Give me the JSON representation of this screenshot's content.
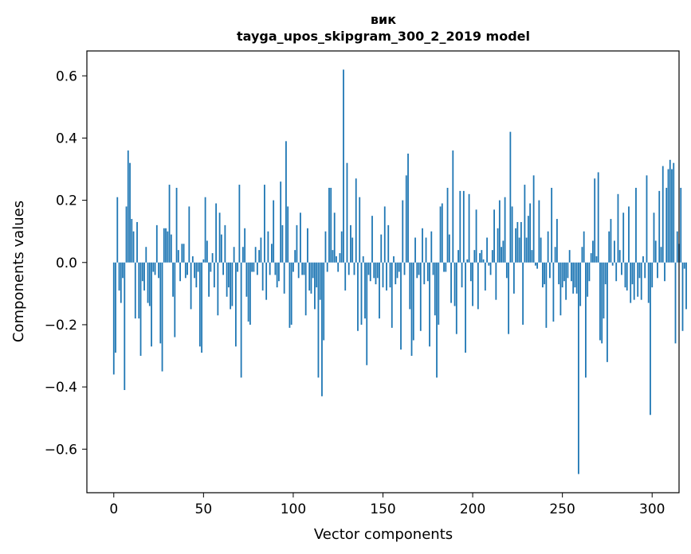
{
  "chart_data": {
    "type": "bar",
    "title_line1": "вик",
    "title_line2": "tayga_upos_skipgram_300_2_2019 model",
    "xlabel": "Vector components",
    "ylabel": "Components values",
    "xlim": [
      -15,
      315
    ],
    "ylim": [
      -0.74,
      0.68
    ],
    "xticks": [
      0,
      50,
      100,
      150,
      200,
      250,
      300
    ],
    "xtick_labels": [
      "0",
      "50",
      "100",
      "150",
      "200",
      "250",
      "300"
    ],
    "yticks": [
      -0.6,
      -0.4,
      -0.2,
      0.0,
      0.2,
      0.4,
      0.6
    ],
    "ytick_labels": [
      "−0.6",
      "−0.4",
      "−0.2",
      "0.0",
      "0.2",
      "0.4",
      "0.6"
    ],
    "bar_color": "#1f77b4",
    "values": [
      -0.36,
      -0.29,
      0.21,
      -0.09,
      -0.13,
      -0.05,
      -0.41,
      0.18,
      0.36,
      0.32,
      0.14,
      0.1,
      -0.18,
      0.13,
      -0.18,
      -0.3,
      -0.06,
      -0.09,
      0.05,
      -0.13,
      -0.14,
      -0.27,
      -0.03,
      -0.04,
      0.12,
      -0.05,
      -0.26,
      -0.35,
      0.11,
      0.11,
      0.1,
      0.25,
      0.09,
      -0.11,
      -0.24,
      0.24,
      0.04,
      -0.06,
      0.06,
      0.06,
      -0.05,
      -0.04,
      0.18,
      -0.15,
      0.02,
      -0.05,
      -0.08,
      -0.03,
      -0.27,
      -0.29,
      0.01,
      0.21,
      0.07,
      -0.11,
      -0.03,
      0.03,
      -0.08,
      0.19,
      -0.17,
      0.16,
      0.09,
      -0.04,
      0.12,
      -0.11,
      -0.08,
      -0.15,
      -0.14,
      0.05,
      -0.27,
      -0.03,
      0.25,
      -0.37,
      0.05,
      0.11,
      -0.11,
      -0.19,
      -0.2,
      -0.03,
      -0.03,
      0.05,
      -0.04,
      0.04,
      0.08,
      -0.09,
      0.25,
      -0.12,
      0.1,
      -0.04,
      0.06,
      0.2,
      -0.04,
      -0.08,
      -0.06,
      0.26,
      0.12,
      -0.1,
      0.39,
      0.18,
      -0.21,
      -0.2,
      -0.03,
      0.04,
      0.12,
      -0.05,
      0.16,
      -0.04,
      -0.04,
      -0.17,
      0.11,
      -0.09,
      -0.1,
      -0.05,
      -0.15,
      -0.08,
      -0.37,
      -0.12,
      -0.43,
      -0.25,
      0.1,
      -0.03,
      0.24,
      0.24,
      0.04,
      0.16,
      0.02,
      -0.03,
      0.03,
      0.1,
      0.62,
      -0.09,
      0.32,
      -0.04,
      0.12,
      0.08,
      -0.04,
      0.27,
      -0.22,
      0.21,
      -0.2,
      0.02,
      -0.18,
      -0.33,
      -0.04,
      -0.06,
      0.15,
      -0.05,
      -0.07,
      -0.05,
      -0.18,
      0.09,
      -0.08,
      0.18,
      -0.09,
      0.12,
      -0.08,
      -0.21,
      0.02,
      -0.07,
      -0.05,
      -0.03,
      -0.28,
      0.2,
      -0.04,
      0.28,
      0.35,
      -0.15,
      -0.3,
      -0.25,
      0.08,
      -0.05,
      -0.04,
      -0.22,
      0.11,
      -0.07,
      0.08,
      -0.06,
      -0.27,
      0.1,
      -0.04,
      -0.17,
      -0.37,
      -0.2,
      0.18,
      0.19,
      -0.03,
      -0.03,
      0.24,
      0.09,
      -0.13,
      0.36,
      -0.14,
      -0.23,
      0.04,
      0.23,
      -0.08,
      0.23,
      -0.29,
      0.01,
      0.22,
      -0.06,
      -0.14,
      0.04,
      0.17,
      -0.15,
      0.03,
      0.04,
      0.01,
      -0.09,
      0.08,
      -0.01,
      -0.04,
      0.04,
      0.17,
      -0.12,
      0.11,
      0.2,
      0.05,
      0.07,
      0.21,
      -0.05,
      -0.23,
      0.42,
      0.18,
      -0.1,
      0.11,
      0.13,
      0.08,
      0.13,
      -0.2,
      0.25,
      0.08,
      0.15,
      0.19,
      0.04,
      0.28,
      -0.01,
      -0.02,
      0.2,
      0.08,
      -0.08,
      -0.07,
      -0.21,
      0.1,
      -0.05,
      0.24,
      -0.19,
      0.05,
      0.14,
      -0.07,
      -0.17,
      -0.08,
      -0.06,
      -0.12,
      -0.05,
      0.04,
      -0.06,
      -0.1,
      -0.08,
      -0.1,
      -0.68,
      -0.14,
      0.05,
      0.1,
      -0.37,
      -0.11,
      -0.06,
      0.03,
      0.07,
      0.27,
      0.02,
      0.29,
      -0.25,
      -0.26,
      -0.18,
      -0.07,
      -0.32,
      0.1,
      0.14,
      -0.01,
      0.07,
      -0.06,
      0.22,
      0.04,
      -0.04,
      0.16,
      -0.08,
      -0.09,
      0.18,
      -0.13,
      -0.07,
      -0.12,
      0.24,
      -0.11,
      -0.05,
      -0.12,
      0.02,
      -0.05,
      0.28,
      -0.13,
      -0.49,
      -0.08,
      0.16,
      0.07,
      -0.05,
      0.23,
      0.05,
      0.31,
      -0.06,
      0.24,
      0.3,
      0.33,
      0.3,
      0.32,
      -0.26,
      0.1,
      0.06,
      0.24,
      -0.22,
      -0.02,
      -0.15
    ]
  }
}
